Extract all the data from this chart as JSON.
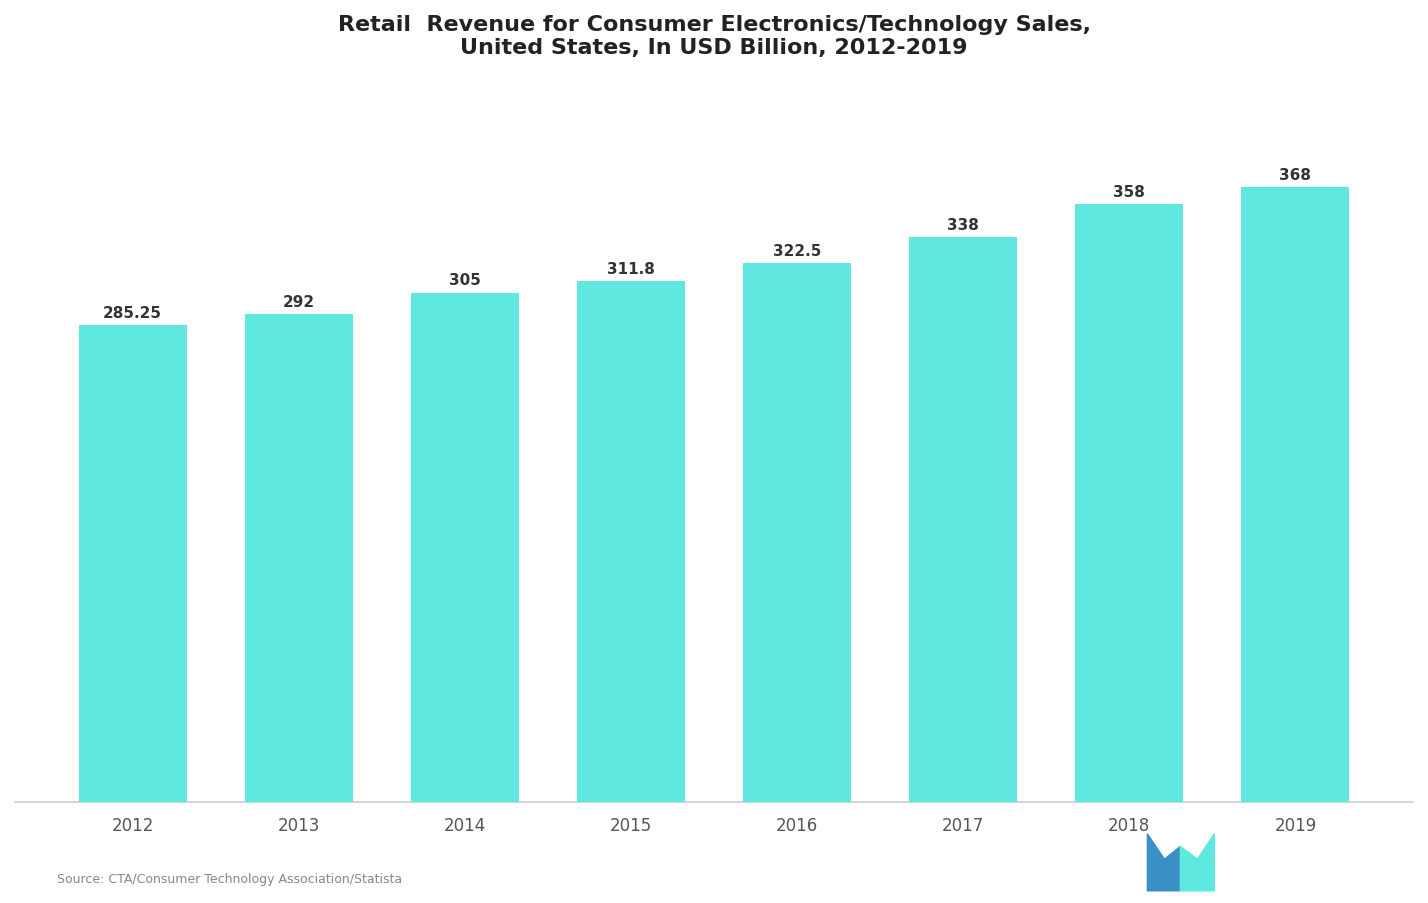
{
  "title_line1": "Retail  Revenue for Consumer Electronics/Technology Sales,",
  "title_line2": "United States, In USD Billion, 2012-2019",
  "categories": [
    "2012",
    "2013",
    "2014",
    "2015",
    "2016",
    "2017",
    "2018",
    "2019"
  ],
  "values": [
    285.25,
    292.0,
    305.0,
    311.8,
    322.5,
    338.0,
    358.0,
    368.0
  ],
  "bar_color": "#5ee8e0",
  "background_color": "#ffffff",
  "plot_bg_color": "#ffffff",
  "text_color": "#555555",
  "title_color": "#222222",
  "bar_label_color": "#333333",
  "spine_color": "#cccccc",
  "ylim": [
    0,
    430
  ],
  "source_text": "Source: CTA/Consumer Technology Association/Statista",
  "value_labels": [
    "285.25",
    "292",
    "305",
    "311.8",
    "322.5",
    "338",
    "358",
    "368"
  ],
  "logo_color_left": "#3a8fc4",
  "logo_color_right": "#5ee8e0"
}
